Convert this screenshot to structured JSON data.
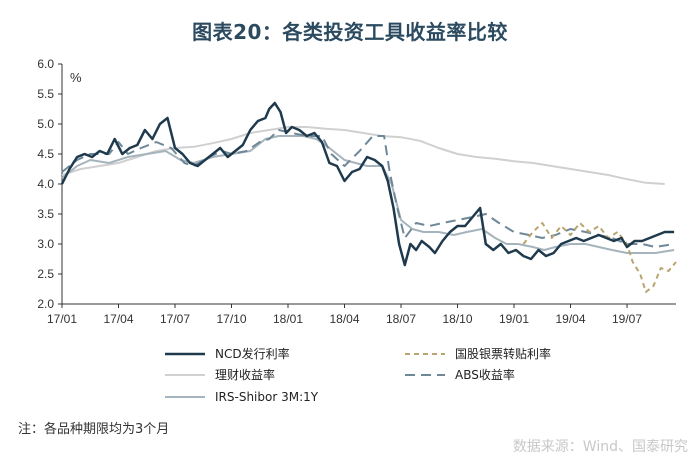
{
  "title": "图表20：各类投资工具收益率比较",
  "note": "注：各品种期限均为3个月",
  "watermark": "数据来源：Wind、国泰研究",
  "chart_data": {
    "type": "line",
    "y_unit": "%",
    "ylim": [
      2.0,
      6.0
    ],
    "yticks": [
      "6.0",
      "5.5",
      "5.0",
      "4.5",
      "4.0",
      "3.5",
      "3.0",
      "2.5",
      "2.0"
    ],
    "xlim": [
      0,
      32.6
    ],
    "xticks": [
      {
        "label": "17/01",
        "x": 0
      },
      {
        "label": "17/04",
        "x": 3
      },
      {
        "label": "17/07",
        "x": 6
      },
      {
        "label": "17/10",
        "x": 9
      },
      {
        "label": "18/01",
        "x": 12
      },
      {
        "label": "18/04",
        "x": 15
      },
      {
        "label": "18/07",
        "x": 18
      },
      {
        "label": "18/10",
        "x": 21
      },
      {
        "label": "19/01",
        "x": 24
      },
      {
        "label": "19/04",
        "x": 27
      },
      {
        "label": "19/07",
        "x": 30
      }
    ],
    "grid": false,
    "legend_position": "bottom",
    "series": [
      {
        "name": "理财收益率",
        "color": "#d0d0d0",
        "dash": "solid",
        "width": 2,
        "points": [
          [
            0,
            4.15
          ],
          [
            1,
            4.25
          ],
          [
            2,
            4.3
          ],
          [
            3,
            4.35
          ],
          [
            4,
            4.45
          ],
          [
            5,
            4.55
          ],
          [
            6,
            4.6
          ],
          [
            7,
            4.62
          ],
          [
            8,
            4.68
          ],
          [
            9,
            4.75
          ],
          [
            10,
            4.85
          ],
          [
            11,
            4.9
          ],
          [
            12,
            4.95
          ],
          [
            13,
            4.95
          ],
          [
            14,
            4.92
          ],
          [
            15,
            4.9
          ],
          [
            16,
            4.85
          ],
          [
            17,
            4.8
          ],
          [
            18,
            4.78
          ],
          [
            19,
            4.72
          ],
          [
            20,
            4.6
          ],
          [
            21,
            4.5
          ],
          [
            22,
            4.45
          ],
          [
            23,
            4.42
          ],
          [
            24,
            4.38
          ],
          [
            25,
            4.35
          ],
          [
            26,
            4.3
          ],
          [
            27,
            4.25
          ],
          [
            28,
            4.2
          ],
          [
            29,
            4.15
          ],
          [
            30,
            4.08
          ],
          [
            31,
            4.02
          ],
          [
            32,
            4.0
          ]
        ]
      },
      {
        "name": "IRS-Shibor 3M:1Y",
        "color": "#a5b4bc",
        "dash": "solid",
        "width": 2,
        "points": [
          [
            0,
            4.1
          ],
          [
            0.8,
            4.3
          ],
          [
            1.5,
            4.4
          ],
          [
            2.5,
            4.35
          ],
          [
            3.5,
            4.45
          ],
          [
            4.5,
            4.5
          ],
          [
            5.5,
            4.55
          ],
          [
            6.3,
            4.4
          ],
          [
            7,
            4.35
          ],
          [
            8,
            4.45
          ],
          [
            9,
            4.5
          ],
          [
            10,
            4.55
          ],
          [
            10.8,
            4.75
          ],
          [
            11.5,
            4.8
          ],
          [
            12,
            4.8
          ],
          [
            12.8,
            4.8
          ],
          [
            13.5,
            4.75
          ],
          [
            14.2,
            4.6
          ],
          [
            15,
            4.4
          ],
          [
            15.6,
            4.35
          ],
          [
            16.2,
            4.3
          ],
          [
            17,
            4.3
          ],
          [
            17.5,
            4.0
          ],
          [
            18,
            3.4
          ],
          [
            18.6,
            3.25
          ],
          [
            19.2,
            3.2
          ],
          [
            20,
            3.2
          ],
          [
            20.8,
            3.15
          ],
          [
            21.5,
            3.2
          ],
          [
            22.3,
            3.25
          ],
          [
            23,
            3.1
          ],
          [
            23.6,
            3.0
          ],
          [
            24.2,
            3.0
          ],
          [
            25,
            2.95
          ],
          [
            25.6,
            2.9
          ],
          [
            26.2,
            2.95
          ],
          [
            27,
            3.0
          ],
          [
            27.8,
            3.0
          ],
          [
            28.5,
            2.95
          ],
          [
            29.2,
            2.9
          ],
          [
            30,
            2.85
          ],
          [
            30.8,
            2.85
          ],
          [
            31.5,
            2.85
          ],
          [
            32.5,
            2.9
          ]
        ]
      },
      {
        "name": "ABS收益率",
        "color": "#6e8897",
        "dash": "10,6",
        "width": 2,
        "points": [
          [
            0,
            4.2
          ],
          [
            0.8,
            4.4
          ],
          [
            1.5,
            4.5
          ],
          [
            2.5,
            4.5
          ],
          [
            3,
            4.7
          ],
          [
            3.5,
            4.5
          ],
          [
            4.2,
            4.6
          ],
          [
            5,
            4.7
          ],
          [
            5.8,
            4.6
          ],
          [
            6.5,
            4.35
          ],
          [
            7,
            4.3
          ],
          [
            7.8,
            4.45
          ],
          [
            8.5,
            4.55
          ],
          [
            9,
            4.5
          ],
          [
            9.8,
            4.55
          ],
          [
            10.5,
            4.7
          ],
          [
            11,
            4.75
          ],
          [
            11.5,
            4.9
          ],
          [
            12.2,
            4.85
          ],
          [
            13,
            4.8
          ],
          [
            13.8,
            4.8
          ],
          [
            14.3,
            4.5
          ],
          [
            15,
            4.3
          ],
          [
            15.8,
            4.55
          ],
          [
            16.5,
            4.8
          ],
          [
            17.1,
            4.8
          ],
          [
            17.4,
            4.2
          ],
          [
            17.8,
            3.6
          ],
          [
            18.2,
            3.1
          ],
          [
            18.8,
            3.35
          ],
          [
            19.5,
            3.3
          ],
          [
            20.2,
            3.35
          ],
          [
            21,
            3.4
          ],
          [
            21.8,
            3.45
          ],
          [
            22.5,
            3.5
          ],
          [
            23.2,
            3.35
          ],
          [
            24,
            3.2
          ],
          [
            24.8,
            3.15
          ],
          [
            25.5,
            3.1
          ],
          [
            26.2,
            3.15
          ],
          [
            27,
            3.25
          ],
          [
            27.8,
            3.2
          ],
          [
            28.5,
            3.15
          ],
          [
            29.2,
            3.1
          ],
          [
            30,
            3.0
          ],
          [
            30.8,
            3.0
          ],
          [
            31.5,
            2.95
          ],
          [
            32.5,
            3.0
          ]
        ]
      },
      {
        "name": "国股银票转贴利率",
        "color": "#b8a56e",
        "dash": "5,4",
        "width": 2,
        "points": [
          [
            24.5,
            3.0
          ],
          [
            25,
            3.2
          ],
          [
            25.5,
            3.35
          ],
          [
            26,
            3.1
          ],
          [
            26.5,
            3.3
          ],
          [
            27,
            3.15
          ],
          [
            27.5,
            3.35
          ],
          [
            28,
            3.2
          ],
          [
            28.5,
            3.3
          ],
          [
            29,
            3.1
          ],
          [
            29.5,
            3.2
          ],
          [
            30,
            3.0
          ],
          [
            30.3,
            2.7
          ],
          [
            30.7,
            2.5
          ],
          [
            31,
            2.2
          ],
          [
            31.4,
            2.3
          ],
          [
            31.8,
            2.6
          ],
          [
            32.2,
            2.55
          ],
          [
            32.6,
            2.7
          ]
        ]
      },
      {
        "name": "NCD发行利率",
        "color": "#1f3a4d",
        "dash": "solid",
        "width": 2.5,
        "points": [
          [
            0,
            4.0
          ],
          [
            0.4,
            4.25
          ],
          [
            0.8,
            4.45
          ],
          [
            1.2,
            4.5
          ],
          [
            1.6,
            4.45
          ],
          [
            2,
            4.55
          ],
          [
            2.4,
            4.5
          ],
          [
            2.8,
            4.75
          ],
          [
            3.2,
            4.5
          ],
          [
            3.6,
            4.6
          ],
          [
            4,
            4.65
          ],
          [
            4.4,
            4.9
          ],
          [
            4.8,
            4.75
          ],
          [
            5.2,
            5.0
          ],
          [
            5.6,
            5.1
          ],
          [
            6,
            4.6
          ],
          [
            6.4,
            4.5
          ],
          [
            6.8,
            4.35
          ],
          [
            7.2,
            4.3
          ],
          [
            7.6,
            4.4
          ],
          [
            8,
            4.5
          ],
          [
            8.4,
            4.6
          ],
          [
            8.8,
            4.45
          ],
          [
            9.2,
            4.55
          ],
          [
            9.6,
            4.65
          ],
          [
            10,
            4.9
          ],
          [
            10.4,
            5.05
          ],
          [
            10.8,
            5.1
          ],
          [
            11,
            5.25
          ],
          [
            11.3,
            5.35
          ],
          [
            11.6,
            5.2
          ],
          [
            11.9,
            4.85
          ],
          [
            12.2,
            4.95
          ],
          [
            12.6,
            4.9
          ],
          [
            13,
            4.8
          ],
          [
            13.4,
            4.85
          ],
          [
            13.8,
            4.7
          ],
          [
            14.2,
            4.35
          ],
          [
            14.6,
            4.3
          ],
          [
            15,
            4.05
          ],
          [
            15.4,
            4.2
          ],
          [
            15.8,
            4.25
          ],
          [
            16.2,
            4.45
          ],
          [
            16.6,
            4.4
          ],
          [
            17,
            4.3
          ],
          [
            17.3,
            4.05
          ],
          [
            17.6,
            3.6
          ],
          [
            17.9,
            3.0
          ],
          [
            18.2,
            2.65
          ],
          [
            18.5,
            3.0
          ],
          [
            18.8,
            2.9
          ],
          [
            19.1,
            3.05
          ],
          [
            19.5,
            2.95
          ],
          [
            19.8,
            2.85
          ],
          [
            20.2,
            3.05
          ],
          [
            20.6,
            3.2
          ],
          [
            21,
            3.3
          ],
          [
            21.4,
            3.3
          ],
          [
            21.8,
            3.45
          ],
          [
            22.2,
            3.6
          ],
          [
            22.5,
            3.0
          ],
          [
            22.9,
            2.9
          ],
          [
            23.3,
            3.0
          ],
          [
            23.7,
            2.85
          ],
          [
            24.1,
            2.9
          ],
          [
            24.5,
            2.8
          ],
          [
            24.9,
            2.75
          ],
          [
            25.3,
            2.9
          ],
          [
            25.7,
            2.8
          ],
          [
            26.1,
            2.85
          ],
          [
            26.5,
            3.0
          ],
          [
            26.9,
            3.05
          ],
          [
            27.3,
            3.1
          ],
          [
            27.7,
            3.05
          ],
          [
            28.1,
            3.1
          ],
          [
            28.5,
            3.15
          ],
          [
            28.9,
            3.1
          ],
          [
            29.3,
            3.05
          ],
          [
            29.7,
            3.1
          ],
          [
            30,
            2.95
          ],
          [
            30.4,
            3.05
          ],
          [
            30.8,
            3.05
          ],
          [
            31.2,
            3.1
          ],
          [
            31.6,
            3.15
          ],
          [
            32,
            3.2
          ],
          [
            32.5,
            3.2
          ]
        ]
      }
    ],
    "legend": [
      {
        "name": "NCD发行利率",
        "series": 4
      },
      {
        "name": "国股银票转贴利率",
        "series": 3
      },
      {
        "name": "理财收益率",
        "series": 0
      },
      {
        "name": "ABS收益率",
        "series": 2
      },
      {
        "name": "IRS-Shibor 3M:1Y",
        "series": 1
      }
    ]
  }
}
